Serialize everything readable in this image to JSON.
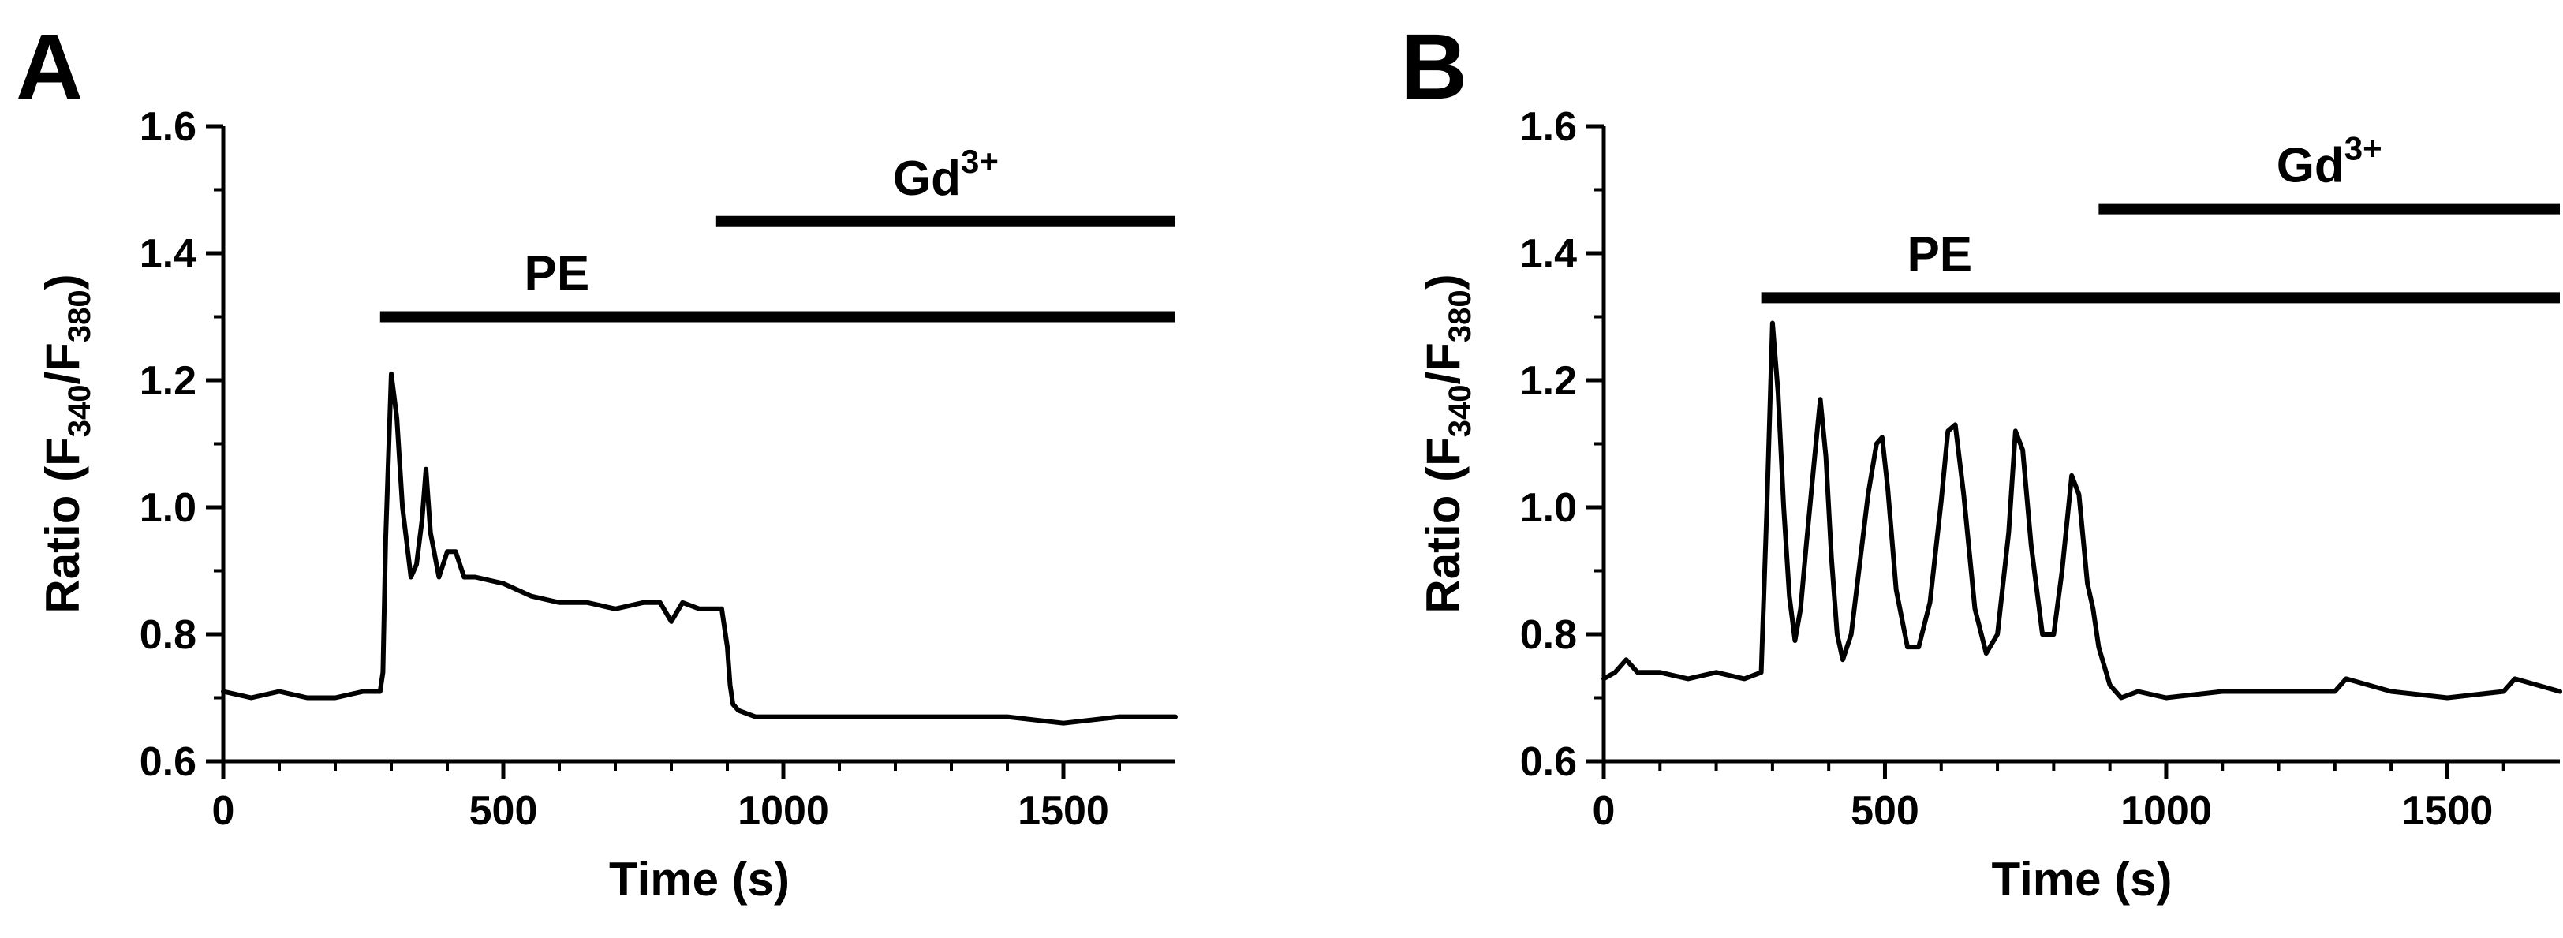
{
  "chart_data": [
    {
      "type": "line",
      "panel": "A",
      "ylabel": {
        "pre": "Ratio (F",
        "sub1": "340",
        "mid": "/F",
        "sub2": "380",
        "post": ")"
      },
      "xlabel": "Time (s)",
      "xlim": [
        0,
        1700
      ],
      "ylim": [
        0.6,
        1.6
      ],
      "xticks": [
        "0",
        "500",
        "1000",
        "1500"
      ],
      "xtick_values": [
        0,
        500,
        1000,
        1500
      ],
      "yticks": [
        "0.6",
        "0.8",
        "1.0",
        "1.2",
        "1.4",
        "1.6"
      ],
      "ytick_values": [
        0.6,
        0.8,
        1.0,
        1.2,
        1.4,
        1.6
      ],
      "treatment_bars": [
        {
          "label": "PE",
          "start": 280,
          "end": 1700,
          "y": 1.3
        },
        {
          "label": "Gd",
          "sup": "3+",
          "start": 880,
          "end": 1700,
          "y": 1.45
        }
      ],
      "series": [
        {
          "x": [
            0,
            50,
            100,
            150,
            200,
            250,
            280,
            285,
            290,
            300,
            310,
            320,
            335,
            345,
            355,
            362,
            370,
            385,
            400,
            415,
            430,
            450,
            500,
            550,
            600,
            650,
            700,
            750,
            780,
            800,
            820,
            850,
            880,
            890,
            900,
            905,
            910,
            920,
            950,
            1000,
            1100,
            1200,
            1300,
            1400,
            1500,
            1600,
            1700
          ],
          "y": [
            0.71,
            0.7,
            0.71,
            0.7,
            0.7,
            0.71,
            0.71,
            0.74,
            0.95,
            1.21,
            1.14,
            1.0,
            0.89,
            0.91,
            0.98,
            1.06,
            0.96,
            0.89,
            0.93,
            0.93,
            0.89,
            0.89,
            0.88,
            0.86,
            0.85,
            0.85,
            0.84,
            0.85,
            0.85,
            0.82,
            0.85,
            0.84,
            0.84,
            0.84,
            0.78,
            0.72,
            0.69,
            0.68,
            0.67,
            0.67,
            0.67,
            0.67,
            0.67,
            0.67,
            0.66,
            0.67,
            0.67
          ]
        }
      ]
    },
    {
      "type": "line",
      "panel": "B",
      "ylabel": {
        "pre": "Ratio (F",
        "sub1": "340",
        "mid": "/F",
        "sub2": "380",
        "post": ")"
      },
      "xlabel": "Time (s)",
      "xlim": [
        0,
        1700
      ],
      "ylim": [
        0.6,
        1.6
      ],
      "xticks": [
        "0",
        "500",
        "1000",
        "1500"
      ],
      "xtick_values": [
        0,
        500,
        1000,
        1500
      ],
      "yticks": [
        "0.6",
        "0.8",
        "1.0",
        "1.2",
        "1.4",
        "1.6"
      ],
      "ytick_values": [
        0.6,
        0.8,
        1.0,
        1.2,
        1.4,
        1.6
      ],
      "treatment_bars": [
        {
          "label": "PE",
          "start": 280,
          "end": 1700,
          "y": 1.33
        },
        {
          "label": "Gd",
          "sup": "3+",
          "start": 880,
          "end": 1700,
          "y": 1.47
        }
      ],
      "series": [
        {
          "x": [
            0,
            20,
            40,
            60,
            100,
            150,
            200,
            250,
            280,
            290,
            300,
            310,
            320,
            330,
            340,
            350,
            360,
            375,
            385,
            395,
            405,
            415,
            425,
            440,
            455,
            470,
            485,
            495,
            505,
            520,
            540,
            560,
            580,
            600,
            612,
            625,
            640,
            660,
            680,
            700,
            720,
            732,
            745,
            760,
            780,
            800,
            815,
            832,
            845,
            860,
            870,
            880,
            900,
            920,
            950,
            1000,
            1100,
            1200,
            1300,
            1320,
            1400,
            1500,
            1600,
            1620,
            1700
          ],
          "y": [
            0.73,
            0.74,
            0.76,
            0.74,
            0.74,
            0.73,
            0.74,
            0.73,
            0.74,
            1.0,
            1.29,
            1.18,
            1.0,
            0.86,
            0.79,
            0.84,
            0.94,
            1.08,
            1.17,
            1.08,
            0.92,
            0.8,
            0.76,
            0.8,
            0.91,
            1.02,
            1.1,
            1.11,
            1.03,
            0.87,
            0.78,
            0.78,
            0.85,
            1.01,
            1.12,
            1.13,
            1.02,
            0.84,
            0.77,
            0.8,
            0.96,
            1.12,
            1.09,
            0.94,
            0.8,
            0.8,
            0.9,
            1.05,
            1.02,
            0.88,
            0.84,
            0.78,
            0.72,
            0.7,
            0.71,
            0.7,
            0.71,
            0.71,
            0.71,
            0.73,
            0.71,
            0.7,
            0.71,
            0.73,
            0.71
          ]
        }
      ]
    }
  ]
}
